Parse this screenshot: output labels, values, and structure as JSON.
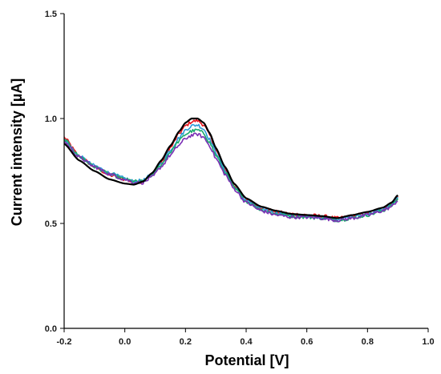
{
  "chart_data": {
    "type": "line",
    "title": "",
    "xlabel": "Potential [V]",
    "ylabel": "Current intensity [µA]",
    "xlim": [
      -0.2,
      1.0
    ],
    "ylim": [
      0.0,
      1.5
    ],
    "xticks": [
      "-0.2",
      "0.0",
      "0.2",
      "0.4",
      "0.6",
      "0.8",
      "1.0"
    ],
    "yticks": [
      "0.0",
      "0.5",
      "1.0",
      "1.5"
    ],
    "grid": false,
    "legend": "none",
    "series": [
      {
        "color": "#000000",
        "noise": 0.0,
        "x": [
          -0.2,
          -0.15,
          -0.1,
          -0.05,
          0.0,
          0.03,
          0.06,
          0.09,
          0.12,
          0.15,
          0.18,
          0.2,
          0.22,
          0.24,
          0.26,
          0.28,
          0.3,
          0.33,
          0.36,
          0.4,
          0.45,
          0.5,
          0.55,
          0.6,
          0.65,
          0.7,
          0.75,
          0.8,
          0.85,
          0.88,
          0.9
        ],
        "y": [
          0.88,
          0.8,
          0.75,
          0.71,
          0.69,
          0.685,
          0.7,
          0.74,
          0.8,
          0.87,
          0.94,
          0.98,
          1.0,
          1.0,
          0.98,
          0.93,
          0.86,
          0.77,
          0.69,
          0.62,
          0.58,
          0.56,
          0.545,
          0.54,
          0.535,
          0.525,
          0.54,
          0.555,
          0.575,
          0.6,
          0.635
        ]
      },
      {
        "color": "#e8141c",
        "noise": 0.008,
        "x": [
          -0.2,
          -0.15,
          -0.1,
          -0.05,
          0.0,
          0.03,
          0.06,
          0.09,
          0.12,
          0.15,
          0.18,
          0.2,
          0.22,
          0.24,
          0.26,
          0.28,
          0.3,
          0.33,
          0.36,
          0.4,
          0.45,
          0.5,
          0.55,
          0.6,
          0.65,
          0.7,
          0.75,
          0.8,
          0.85,
          0.88,
          0.9
        ],
        "y": [
          0.91,
          0.82,
          0.77,
          0.73,
          0.71,
          0.695,
          0.7,
          0.735,
          0.79,
          0.86,
          0.93,
          0.965,
          0.985,
          0.99,
          0.97,
          0.92,
          0.85,
          0.76,
          0.68,
          0.615,
          0.575,
          0.555,
          0.545,
          0.54,
          0.535,
          0.525,
          0.535,
          0.55,
          0.57,
          0.595,
          0.625
        ]
      },
      {
        "color": "#2e9ad6",
        "noise": 0.008,
        "x": [
          -0.2,
          -0.15,
          -0.1,
          -0.05,
          0.0,
          0.03,
          0.06,
          0.09,
          0.12,
          0.15,
          0.18,
          0.2,
          0.22,
          0.24,
          0.26,
          0.28,
          0.3,
          0.33,
          0.36,
          0.4,
          0.45,
          0.5,
          0.55,
          0.6,
          0.65,
          0.7,
          0.75,
          0.8,
          0.85,
          0.88,
          0.9
        ],
        "y": [
          0.9,
          0.82,
          0.775,
          0.74,
          0.715,
          0.7,
          0.705,
          0.735,
          0.785,
          0.85,
          0.91,
          0.945,
          0.965,
          0.97,
          0.95,
          0.9,
          0.84,
          0.755,
          0.675,
          0.61,
          0.57,
          0.55,
          0.54,
          0.535,
          0.53,
          0.52,
          0.53,
          0.545,
          0.565,
          0.59,
          0.62
        ]
      },
      {
        "color": "#1aaa6e",
        "noise": 0.008,
        "x": [
          -0.2,
          -0.15,
          -0.1,
          -0.05,
          0.0,
          0.03,
          0.06,
          0.09,
          0.12,
          0.15,
          0.18,
          0.2,
          0.22,
          0.24,
          0.26,
          0.28,
          0.3,
          0.33,
          0.36,
          0.4,
          0.45,
          0.5,
          0.55,
          0.6,
          0.65,
          0.7,
          0.75,
          0.8,
          0.85,
          0.88,
          0.9
        ],
        "y": [
          0.9,
          0.82,
          0.77,
          0.735,
          0.71,
          0.7,
          0.7,
          0.73,
          0.78,
          0.84,
          0.895,
          0.925,
          0.94,
          0.945,
          0.93,
          0.885,
          0.825,
          0.745,
          0.67,
          0.605,
          0.565,
          0.545,
          0.535,
          0.53,
          0.525,
          0.515,
          0.525,
          0.54,
          0.56,
          0.585,
          0.615
        ]
      },
      {
        "color": "#7b2fb5",
        "noise": 0.008,
        "x": [
          -0.2,
          -0.15,
          -0.1,
          -0.05,
          0.0,
          0.03,
          0.06,
          0.09,
          0.12,
          0.15,
          0.18,
          0.2,
          0.22,
          0.24,
          0.26,
          0.28,
          0.3,
          0.33,
          0.36,
          0.4,
          0.45,
          0.5,
          0.55,
          0.6,
          0.65,
          0.7,
          0.75,
          0.8,
          0.85,
          0.88,
          0.9
        ],
        "y": [
          0.89,
          0.815,
          0.77,
          0.735,
          0.71,
          0.695,
          0.695,
          0.72,
          0.77,
          0.825,
          0.875,
          0.905,
          0.92,
          0.925,
          0.91,
          0.87,
          0.81,
          0.735,
          0.665,
          0.6,
          0.56,
          0.54,
          0.53,
          0.53,
          0.525,
          0.515,
          0.525,
          0.54,
          0.56,
          0.58,
          0.61
        ]
      }
    ]
  }
}
